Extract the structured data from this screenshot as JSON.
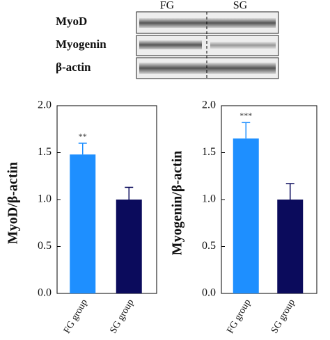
{
  "blot": {
    "lanes": [
      "FG",
      "SG"
    ],
    "rows": [
      "MyoD",
      "Myogenin",
      "β-actin"
    ]
  },
  "chart_data": [
    {
      "type": "bar",
      "ylabel": "MyoD/β-actin",
      "categories": [
        "FG group",
        "SG group"
      ],
      "values": [
        1.48,
        1.0
      ],
      "errors": [
        0.12,
        0.13
      ],
      "annotations": [
        "**",
        null
      ],
      "colors": [
        "#1e8fff",
        "#0b0b5c"
      ],
      "ylim": [
        0,
        2
      ],
      "yticks": [
        {
          "value": 0,
          "label": "0.0"
        },
        0.5,
        {
          "value": 1,
          "label": "1.0"
        },
        1.5,
        {
          "value": 2,
          "label": "2.0"
        }
      ]
    },
    {
      "type": "bar",
      "ylabel": "Myogenin/β-actin",
      "categories": [
        "FG group",
        "SG group"
      ],
      "values": [
        1.65,
        1.0
      ],
      "errors": [
        0.17,
        0.17
      ],
      "annotations": [
        "***",
        null
      ],
      "colors": [
        "#1e8fff",
        "#0b0b5c"
      ],
      "ylim": [
        0,
        2
      ],
      "yticks": [
        {
          "value": 0,
          "label": "0.0"
        },
        0.5,
        {
          "value": 1,
          "label": "1.0"
        },
        1.5,
        {
          "value": 2,
          "label": "2.0"
        }
      ]
    }
  ]
}
